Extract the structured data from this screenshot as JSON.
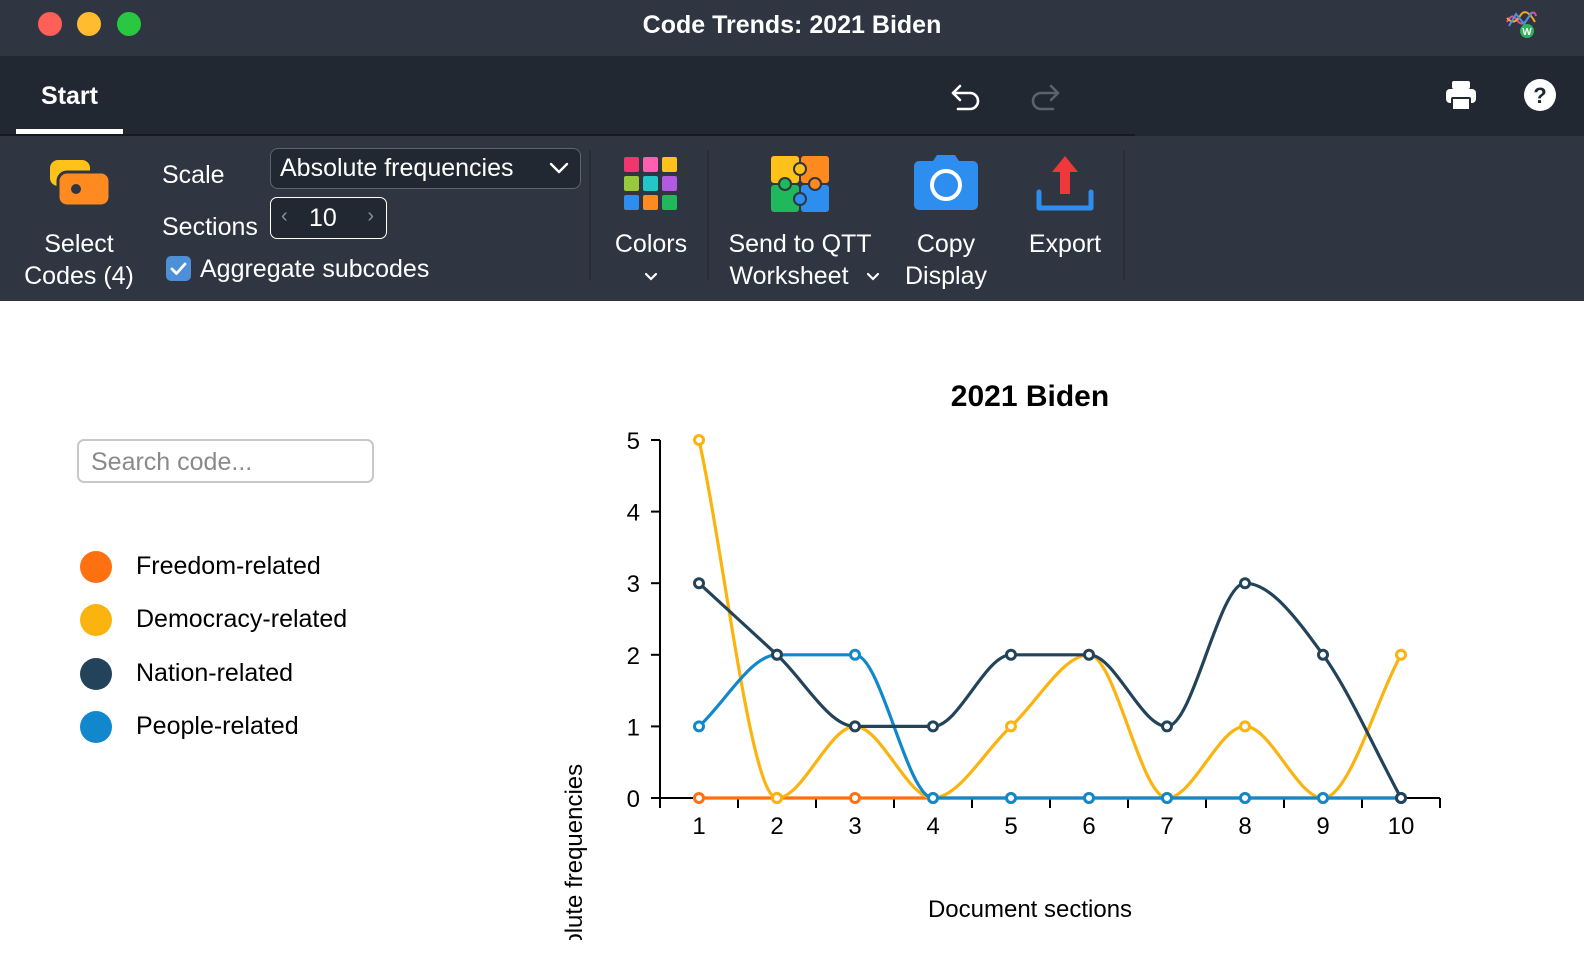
{
  "window": {
    "title": "Code Trends: 2021 Biden",
    "app_icon": "maxqda-icon"
  },
  "tabs": [
    {
      "label": "Start",
      "active": true
    }
  ],
  "toolbar_icons": [
    "undo-icon",
    "redo-icon",
    "print-icon",
    "help-icon"
  ],
  "ribbon": {
    "select_codes": {
      "line1": "Select",
      "line2": "Codes (4)",
      "icon": "codes-icon"
    },
    "scale_label": "Scale",
    "scale_value": "Absolute frequencies",
    "sections_label": "Sections",
    "sections_value": "10",
    "aggregate_label": "Aggregate subcodes",
    "aggregate_checked": true,
    "colors_label": "Colors",
    "send_qtt": {
      "line1": "Send to QTT",
      "line2": "Worksheet"
    },
    "copy_display": {
      "line1": "Copy",
      "line2": "Display"
    },
    "export_label": "Export"
  },
  "search": {
    "placeholder": "Search code..."
  },
  "legend": [
    {
      "label": "Freedom-related",
      "color": "#ff7010"
    },
    {
      "label": "Democracy-related",
      "color": "#fbb30f"
    },
    {
      "label": "Nation-related",
      "color": "#22435a"
    },
    {
      "label": "People-related",
      "color": "#1288cc"
    }
  ],
  "chart_data": {
    "type": "line",
    "title": "2021 Biden",
    "xlabel": "Document sections",
    "ylabel": "Absolute frequencies",
    "categories": [
      "1",
      "2",
      "3",
      "4",
      "5",
      "6",
      "7",
      "8",
      "9",
      "10"
    ],
    "ylim": [
      0,
      5
    ],
    "yticks": [
      0,
      1,
      2,
      3,
      4,
      5
    ],
    "smooth": true,
    "series": [
      {
        "name": "Freedom-related",
        "color": "#ff7010",
        "values": [
          0,
          0,
          0,
          0,
          0,
          0,
          0,
          0,
          0,
          0
        ]
      },
      {
        "name": "Democracy-related",
        "color": "#fbb30f",
        "values": [
          5,
          0,
          1,
          0,
          1,
          2,
          0,
          1,
          0,
          2
        ]
      },
      {
        "name": "People-related",
        "color": "#1288cc",
        "values": [
          1,
          2,
          2,
          0,
          0,
          0,
          0,
          0,
          0,
          0
        ]
      },
      {
        "name": "Nation-related",
        "color": "#22435a",
        "values": [
          3,
          2,
          1,
          1,
          2,
          2,
          1,
          3,
          2,
          0
        ]
      }
    ]
  }
}
